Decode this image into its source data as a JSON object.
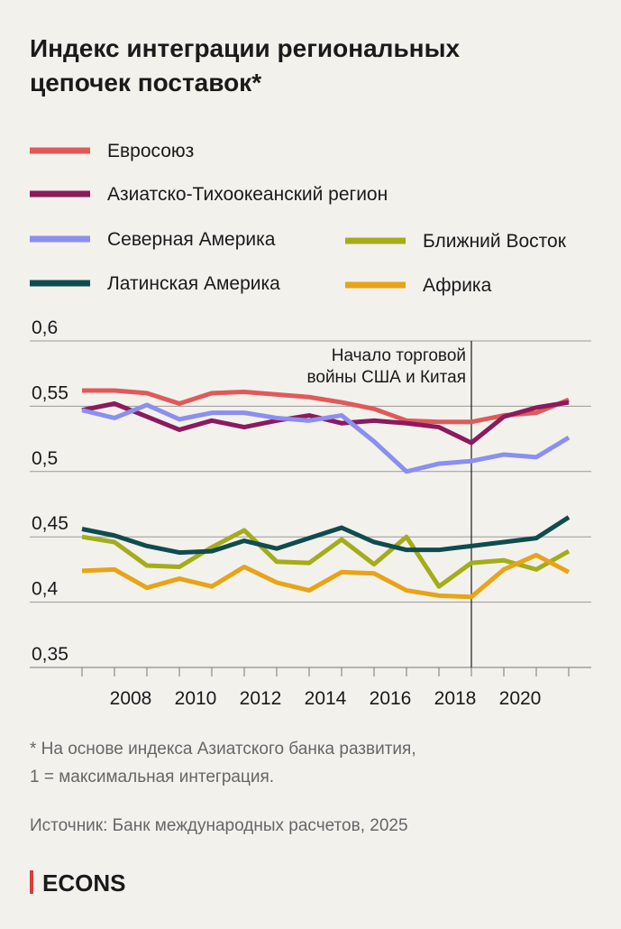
{
  "chart_data": {
    "type": "line",
    "title": [
      "Индекс интеграции региональных",
      "цепочек поставок*"
    ],
    "x": [
      2006,
      2007,
      2008,
      2009,
      2010,
      2011,
      2012,
      2013,
      2014,
      2015,
      2016,
      2017,
      2018,
      2019,
      2020,
      2021
    ],
    "xlim": [
      2006,
      2021
    ],
    "xticks": [
      2008,
      2010,
      2012,
      2014,
      2016,
      2018,
      2020
    ],
    "ylim": [
      0.35,
      0.6
    ],
    "yticks": [
      {
        "value": 0.6,
        "label": "0,6"
      },
      {
        "value": 0.55,
        "label": "0,55"
      },
      {
        "value": 0.5,
        "label": "0,5"
      },
      {
        "value": 0.45,
        "label": "0,45"
      },
      {
        "value": 0.4,
        "label": "0,4"
      },
      {
        "value": 0.35,
        "label": "0,35"
      }
    ],
    "grid": true,
    "series": [
      {
        "name": "Евросоюз",
        "color": "#e05a5a",
        "values": [
          0.562,
          0.562,
          0.56,
          0.552,
          0.56,
          0.561,
          0.559,
          0.557,
          0.553,
          0.548,
          0.539,
          0.538,
          0.538,
          0.543,
          0.545,
          0.555
        ]
      },
      {
        "name": "Азиатско-Тихоокеанский регион",
        "color": "#8b1a5e",
        "values": [
          0.547,
          0.552,
          0.542,
          0.532,
          0.539,
          0.534,
          0.539,
          0.543,
          0.537,
          0.539,
          0.537,
          0.534,
          0.522,
          0.542,
          0.549,
          0.553
        ]
      },
      {
        "name": "Северная Америка",
        "color": "#8a8ff0",
        "values": [
          0.547,
          0.541,
          0.551,
          0.54,
          0.545,
          0.545,
          0.541,
          0.539,
          0.543,
          0.523,
          0.5,
          0.506,
          0.508,
          0.513,
          0.511,
          0.526
        ]
      },
      {
        "name": "Ближний Восток",
        "color": "#a3ad1a",
        "values": [
          0.45,
          0.446,
          0.428,
          0.427,
          0.442,
          0.455,
          0.431,
          0.43,
          0.448,
          0.429,
          0.45,
          0.412,
          0.43,
          0.432,
          0.425,
          0.439
        ]
      },
      {
        "name": "Латинская Америка",
        "color": "#0f4c4f",
        "values": [
          0.456,
          0.451,
          0.443,
          0.438,
          0.439,
          0.447,
          0.441,
          0.449,
          0.457,
          0.446,
          0.44,
          0.44,
          0.443,
          0.446,
          0.449,
          0.465
        ]
      },
      {
        "name": "Африка",
        "color": "#e8a317",
        "values": [
          0.424,
          0.425,
          0.411,
          0.418,
          0.412,
          0.427,
          0.415,
          0.409,
          0.423,
          0.422,
          0.409,
          0.405,
          0.404,
          0.425,
          0.436,
          0.423
        ]
      }
    ],
    "annotation": {
      "x": 2018,
      "lines": [
        "Начало торговой",
        "войны США и Китая"
      ]
    },
    "footnote": [
      "* На основе индекса Азиатского банка развития,",
      "1 = максимальная интеграция."
    ],
    "source": "Источник: Банк международных расчетов, 2025",
    "logo": "ECONS"
  }
}
